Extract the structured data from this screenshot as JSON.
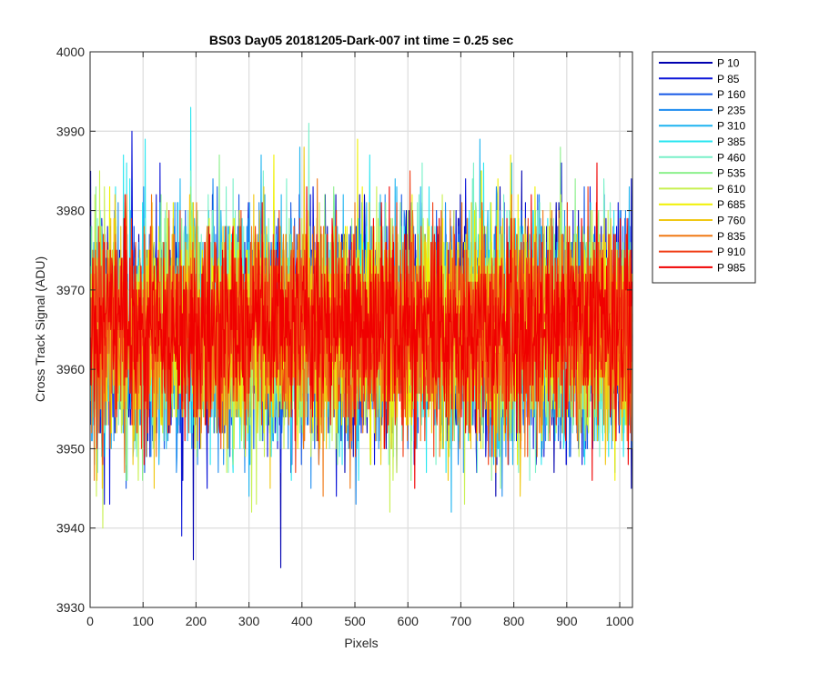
{
  "chart_data": {
    "type": "line",
    "title": "BS03 Day05 20181205-Dark-007 int time = 0.25 sec",
    "xlabel": "Pixels",
    "ylabel": "Cross Track Signal (ADU)",
    "xlim": [
      0,
      1024
    ],
    "ylim": [
      3930,
      4000
    ],
    "xticks": [
      0,
      100,
      200,
      300,
      400,
      500,
      600,
      700,
      800,
      900,
      1000
    ],
    "yticks": [
      3930,
      3940,
      3950,
      3960,
      3970,
      3980,
      3990,
      4000
    ],
    "xtick_labels": [
      "0",
      "100",
      "200",
      "300",
      "400",
      "500",
      "600",
      "700",
      "800",
      "900",
      "1000"
    ],
    "ytick_labels": [
      "3930",
      "3940",
      "3950",
      "3960",
      "3970",
      "3980",
      "3990",
      "4000"
    ],
    "grid": true,
    "legend_position": "outside-top-right",
    "n_points": 1024,
    "series": [
      {
        "name": "P 10",
        "color": "#0000b0",
        "mean": 3965,
        "std": 7.2
      },
      {
        "name": "P 85",
        "color": "#0a14d8",
        "mean": 3965,
        "std": 7.2
      },
      {
        "name": "P 160",
        "color": "#1458e6",
        "mean": 3965,
        "std": 7.0
      },
      {
        "name": "P 235",
        "color": "#1e8cf0",
        "mean": 3965,
        "std": 7.0
      },
      {
        "name": "P 310",
        "color": "#1eb4f0",
        "mean": 3965,
        "std": 6.9
      },
      {
        "name": "P 385",
        "color": "#28e6f0",
        "mean": 3965,
        "std": 6.9
      },
      {
        "name": "P 460",
        "color": "#78f0c8",
        "mean": 3965,
        "std": 6.8
      },
      {
        "name": "P 535",
        "color": "#8cf08c",
        "mean": 3965,
        "std": 6.8
      },
      {
        "name": "P 610",
        "color": "#c8f050",
        "mean": 3965,
        "std": 6.8
      },
      {
        "name": "P 685",
        "color": "#f0f000",
        "mean": 3965,
        "std": 6.7
      },
      {
        "name": "P 760",
        "color": "#f0c814",
        "mean": 3965,
        "std": 6.7
      },
      {
        "name": "P 835",
        "color": "#f07814",
        "mean": 3965,
        "std": 6.6
      },
      {
        "name": "P 910",
        "color": "#f03c14",
        "mean": 3965,
        "std": 6.4
      },
      {
        "name": "P 985",
        "color": "#f00000",
        "mean": 3965,
        "std": 6.0
      }
    ]
  }
}
